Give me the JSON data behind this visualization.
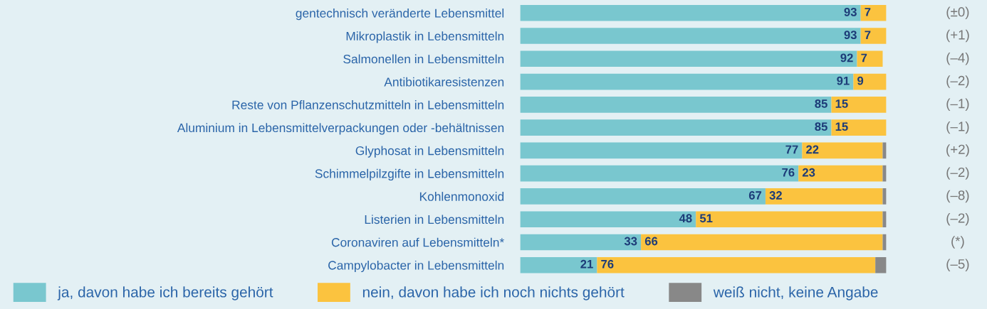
{
  "chart_data": {
    "type": "bar",
    "orientation": "horizontal",
    "stacked": true,
    "categories": [
      "gentechnisch veränderte Lebensmittel",
      "Mikroplastik in Lebensmitteln",
      "Salmonellen in Lebensmitteln",
      "Antibiotikaresistenzen",
      "Reste von Pflanzenschutzmitteln in Lebensmitteln",
      "Aluminium in Lebensmittelverpackungen oder -behältnissen",
      "Glyphosat in Lebensmitteln",
      "Schimmelpilzgifte in Lebensmitteln",
      "Kohlenmonoxid",
      "Listerien in Lebensmitteln",
      "Coronaviren auf Lebensmitteln*",
      "Campylobacter in Lebensmitteln"
    ],
    "series": [
      {
        "name": "ja, davon habe ich bereits gehört",
        "color": "#79c7cf",
        "values": [
          93,
          93,
          92,
          91,
          85,
          85,
          77,
          76,
          67,
          48,
          33,
          21
        ],
        "value_labels": [
          "93",
          "93",
          "92",
          "91",
          "85",
          "85",
          "77",
          "76",
          "67",
          "48",
          "33",
          "21"
        ]
      },
      {
        "name": "nein, davon habe ich noch nichts gehört",
        "color": "#fbc33f",
        "values": [
          7,
          7,
          7,
          9,
          15,
          15,
          22,
          23,
          32,
          51,
          66,
          76
        ],
        "value_labels": [
          "7",
          "7",
          "7",
          "9",
          "15",
          "15",
          "22",
          "23",
          "32",
          "51",
          "66",
          "76"
        ]
      },
      {
        "name": "weiß nicht, keine Angabe",
        "color": "#888888",
        "values": [
          null,
          null,
          null,
          null,
          null,
          null,
          1,
          1,
          1,
          1,
          1,
          3
        ],
        "value_labels": [
          null,
          null,
          null,
          null,
          null,
          null,
          null,
          null,
          null,
          null,
          null,
          null
        ]
      }
    ],
    "annotations": [
      "(±0)",
      "(+1)",
      "(–4)",
      "(–2)",
      "(–1)",
      "(–1)",
      "(+2)",
      "(–2)",
      "(–8)",
      "(–2)",
      "(*)",
      "(–5)"
    ],
    "legend": "bottom",
    "grid": false
  }
}
